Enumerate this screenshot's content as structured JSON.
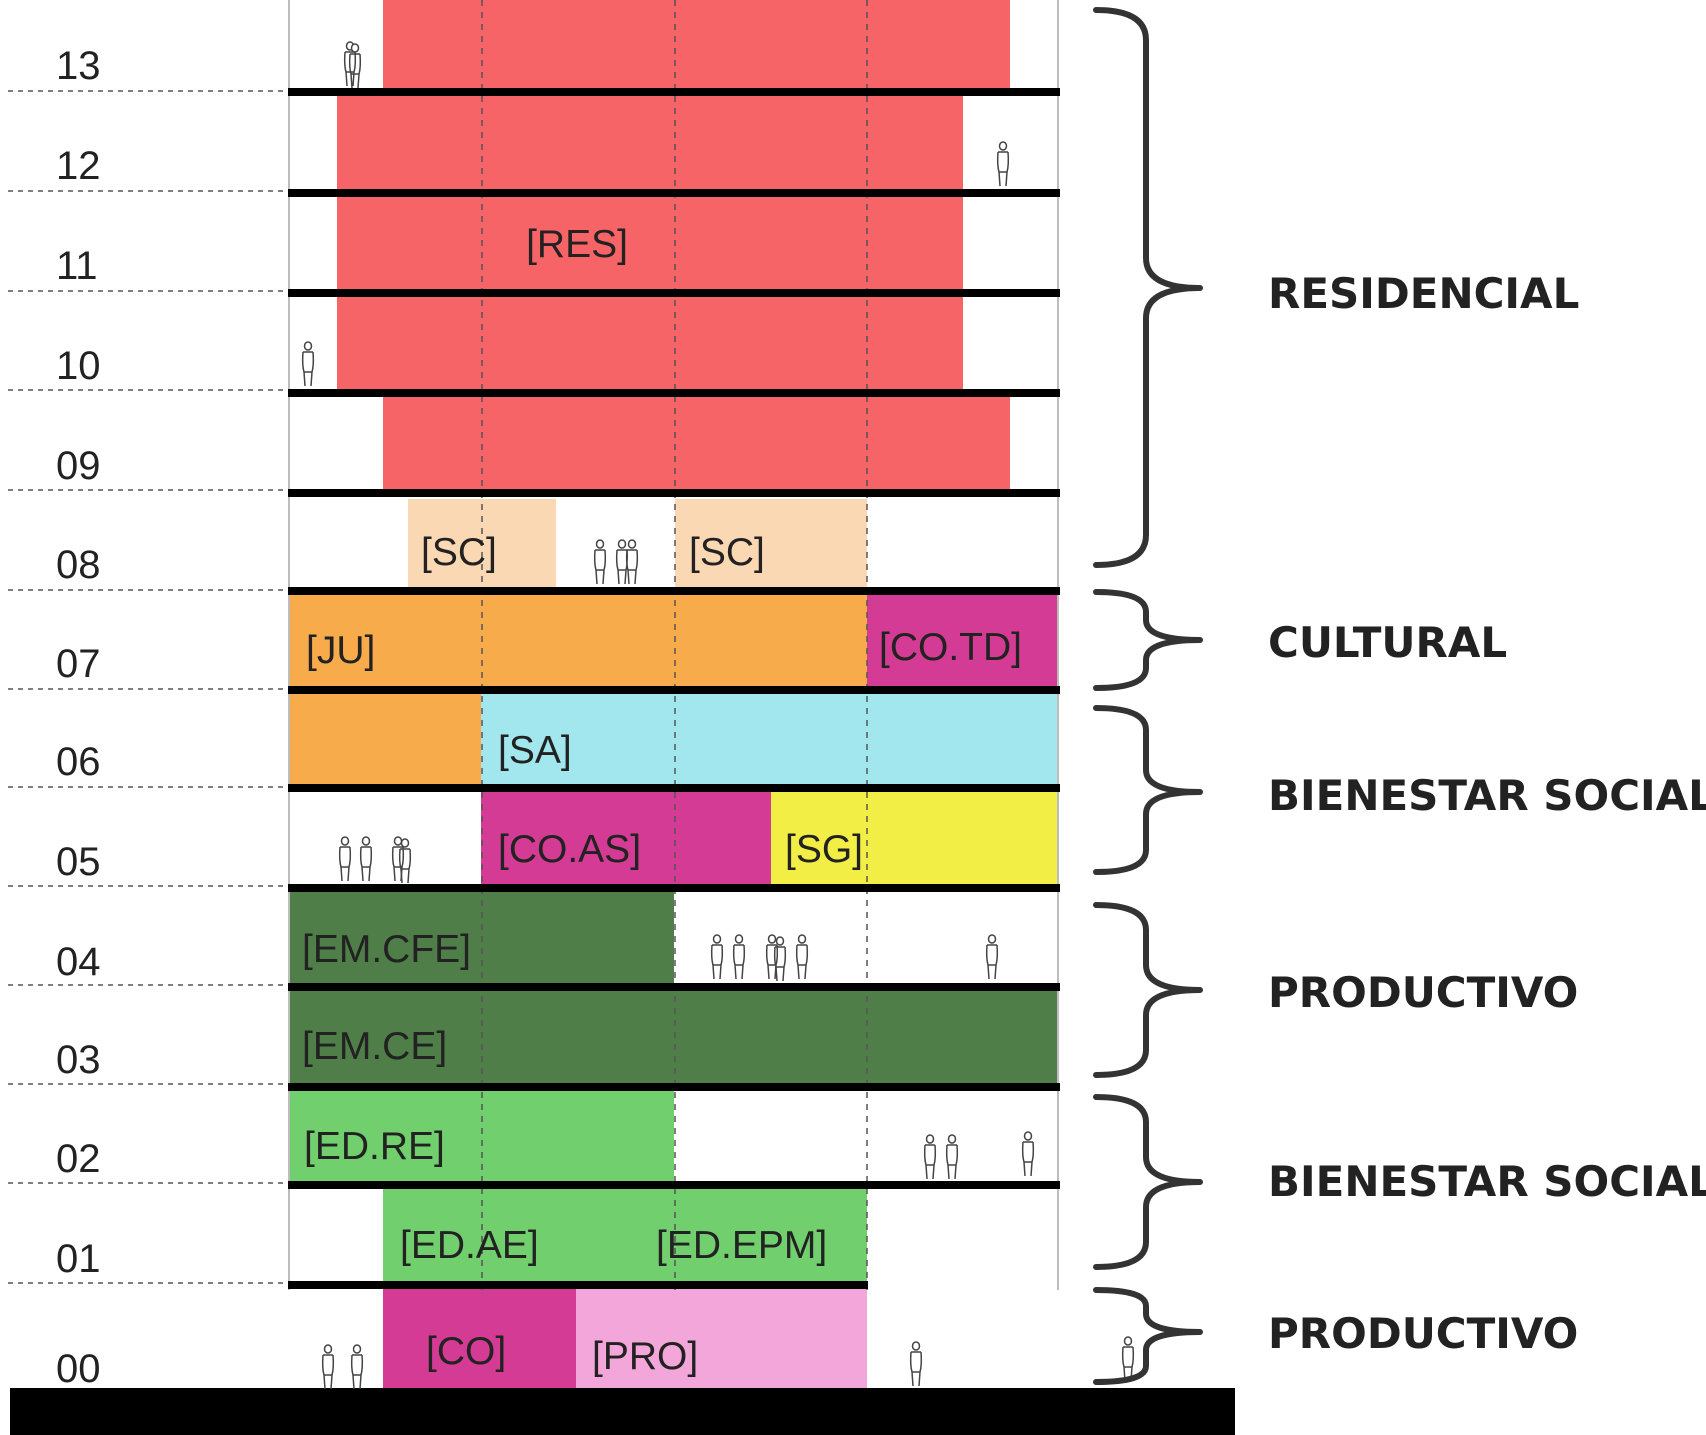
{
  "floors": [
    "13",
    "12",
    "11",
    "10",
    "09",
    "08",
    "07",
    "06",
    "05",
    "04",
    "03",
    "02",
    "01",
    "00"
  ],
  "uses": {
    "res": "[RES]",
    "sc_left": "[SC]",
    "sc_right": "[SC]",
    "ju": "[JU]",
    "co_td": "[CO.TD]",
    "sa": "[SA]",
    "co_as": "[CO.AS]",
    "sg": "[SG]",
    "em_cfe": "[EM.CFE]",
    "em_ce": "[EM.CE]",
    "ed_re": "[ED.RE]",
    "ed_ae": "[ED.AE]",
    "ed_epm": "[ED.EPM]",
    "co": "[CO]",
    "pro": "[PRO]"
  },
  "groups": [
    "RESIDENCIAL",
    "CULTURAL",
    "BIENESTAR SOCIAL",
    "PRODUCTIVO",
    "BIENESTAR SOCIAL",
    "PRODUCTIVO"
  ],
  "colors": {
    "residencial": "#f76468",
    "servicios_comunes": "#fad8b4",
    "juventud": "#f8ab4a",
    "comunitario": "#d43b94",
    "salud": "#a2e6ee",
    "seguridad": "#f2ee45",
    "empleo": "#4f7e48",
    "educacion": "#71cf6e",
    "produccion": "#f3a6da",
    "slab": "#000000"
  }
}
